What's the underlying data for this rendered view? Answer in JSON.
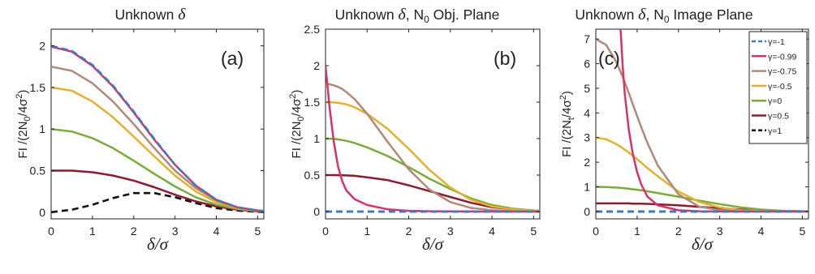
{
  "legend": {
    "entries": [
      {
        "label": "γ=-1",
        "color": "#3a7bc4",
        "dash": true
      },
      {
        "label": "γ=-0.99",
        "color": "#d6336c",
        "dash": false
      },
      {
        "label": "γ=-0.75",
        "color": "#b08a78",
        "dash": false
      },
      {
        "label": "γ=-0.5",
        "color": "#e3b030",
        "dash": false
      },
      {
        "label": "γ=0",
        "color": "#78ac3c",
        "dash": false
      },
      {
        "label": "γ=0.5",
        "color": "#8c1a30",
        "dash": false
      },
      {
        "label": "γ=1",
        "color": "#111111",
        "dash": true
      }
    ]
  },
  "chart_data": [
    {
      "type": "line",
      "title": "Unknown δ",
      "title_plain": "Unknown ",
      "title_delta": "δ",
      "title_suffix": "",
      "panel_label": "(a)",
      "xlabel": "δ/σ",
      "ylabel": "FI /(2N0/4σ2)",
      "ylabel_main": "FI /(2N",
      "ylabel_sub": "0",
      "ylabel_mid": "/4σ",
      "ylabel_sup": "2",
      "ylabel_end": ")",
      "xlim": [
        0,
        5.15
      ],
      "ylim": [
        -0.08,
        2.2
      ],
      "xticks": [
        "0",
        "1",
        "2",
        "3",
        "4",
        "5"
      ],
      "xtick_values": [
        0,
        1,
        2,
        3,
        4,
        5
      ],
      "yticks": [
        "0",
        "0.5",
        "1",
        "1.5",
        "2"
      ],
      "ytick_values": [
        0,
        0.5,
        1,
        1.5,
        2
      ],
      "x": [
        0,
        0.5,
        1,
        1.5,
        2,
        2.5,
        3,
        3.5,
        4,
        4.5,
        5,
        5.15
      ],
      "series": [
        {
          "name": "γ=-1",
          "values": [
            2.0,
            1.94,
            1.77,
            1.52,
            1.21,
            0.88,
            0.57,
            0.32,
            0.15,
            0.06,
            0.02,
            0.015
          ]
        },
        {
          "name": "γ=-0.99",
          "values": [
            1.99,
            1.93,
            1.76,
            1.51,
            1.2,
            0.87,
            0.57,
            0.32,
            0.15,
            0.06,
            0.02,
            0.015
          ]
        },
        {
          "name": "γ=-0.75",
          "values": [
            1.75,
            1.7,
            1.55,
            1.33,
            1.06,
            0.77,
            0.5,
            0.29,
            0.14,
            0.06,
            0.02,
            0.015
          ]
        },
        {
          "name": "γ=-0.5",
          "values": [
            1.5,
            1.46,
            1.33,
            1.14,
            0.91,
            0.67,
            0.44,
            0.25,
            0.12,
            0.05,
            0.02,
            0.015
          ]
        },
        {
          "name": "γ=0",
          "values": [
            1.0,
            0.97,
            0.89,
            0.77,
            0.62,
            0.46,
            0.31,
            0.18,
            0.09,
            0.04,
            0.015,
            0.012
          ]
        },
        {
          "name": "γ=0.5",
          "values": [
            0.5,
            0.5,
            0.48,
            0.44,
            0.38,
            0.3,
            0.21,
            0.13,
            0.07,
            0.03,
            0.01,
            0.008
          ]
        },
        {
          "name": "γ=1",
          "values": [
            0,
            0.03,
            0.09,
            0.17,
            0.23,
            0.23,
            0.18,
            0.11,
            0.05,
            0.02,
            0.005,
            0.004
          ]
        }
      ]
    },
    {
      "type": "line",
      "title": "Unknown δ, N0 Obj. Plane",
      "title_plain": "Unknown ",
      "title_delta": "δ",
      "title_suffix": ", N",
      "title_sub": "0",
      "title_end": "  Obj. Plane",
      "panel_label": "(b)",
      "xlabel": "δ/σ",
      "ylabel": "FI /(2N0/4σ2)",
      "ylabel_main": "FI /(2N",
      "ylabel_sub": "0",
      "ylabel_mid": "/4σ",
      "ylabel_sup": "2",
      "ylabel_end": ")",
      "xlim": [
        0,
        5.15
      ],
      "ylim": [
        -0.1,
        2.5
      ],
      "xticks": [
        "0",
        "1",
        "2",
        "3",
        "4",
        "5"
      ],
      "xtick_values": [
        0,
        1,
        2,
        3,
        4,
        5
      ],
      "yticks": [
        "0",
        "0.5",
        "1",
        "1.5",
        "2",
        "2.5"
      ],
      "ytick_values": [
        0,
        0.5,
        1,
        1.5,
        2,
        2.5
      ],
      "x": [
        0,
        0.05,
        0.1,
        0.2,
        0.3,
        0.4,
        0.5,
        0.7,
        1,
        1.5,
        2,
        2.5,
        3,
        3.5,
        4,
        4.5,
        5,
        5.15
      ],
      "series": [
        {
          "name": "γ=-1",
          "values": [
            0,
            0,
            0,
            0,
            0,
            0,
            0,
            0,
            0,
            0,
            0,
            0,
            0,
            0,
            0,
            0,
            0,
            0
          ]
        },
        {
          "name": "γ=-0.99",
          "values": [
            2.0,
            1.7,
            1.42,
            0.95,
            0.62,
            0.42,
            0.29,
            0.17,
            0.09,
            0.03,
            0.01,
            0.005,
            0.002,
            0.001,
            0,
            0,
            0,
            0
          ]
        },
        {
          "name": "γ=-0.75",
          "values": [
            1.75,
            1.749,
            1.745,
            1.73,
            1.71,
            1.68,
            1.64,
            1.54,
            1.34,
            0.95,
            0.58,
            0.3,
            0.13,
            0.05,
            0.02,
            0.005,
            0.002,
            0.001
          ]
        },
        {
          "name": "γ=-0.5",
          "values": [
            1.5,
            1.5,
            1.499,
            1.495,
            1.49,
            1.48,
            1.47,
            1.43,
            1.34,
            1.13,
            0.86,
            0.57,
            0.33,
            0.16,
            0.07,
            0.03,
            0.01,
            0.008
          ]
        },
        {
          "name": "γ=0",
          "values": [
            1.0,
            1.0,
            0.999,
            0.997,
            0.99,
            0.98,
            0.97,
            0.94,
            0.88,
            0.76,
            0.61,
            0.45,
            0.31,
            0.18,
            0.09,
            0.04,
            0.015,
            0.012
          ]
        },
        {
          "name": "γ=0.5",
          "values": [
            0.5,
            0.5,
            0.5,
            0.5,
            0.499,
            0.498,
            0.496,
            0.49,
            0.47,
            0.43,
            0.36,
            0.28,
            0.2,
            0.12,
            0.06,
            0.03,
            0.01,
            0.008
          ]
        },
        {
          "name": "γ=1",
          "values": [
            0,
            0,
            0,
            0,
            0,
            0,
            0,
            0,
            0,
            0,
            0,
            0,
            0,
            0,
            0,
            0,
            0,
            0
          ]
        }
      ]
    },
    {
      "type": "line",
      "title": "Unknown δ, N0 Image Plane",
      "title_plain": "Unknown ",
      "title_delta": "δ",
      "title_suffix": ", N",
      "title_sub": "0",
      "title_end": "  Image Plane",
      "panel_label": "(c)",
      "xlabel": "δ/σ",
      "ylabel": "FI /(2Nt/4σ2)",
      "ylabel_main": "FI /(2N",
      "ylabel_sub": "t",
      "ylabel_mid": "/4σ",
      "ylabel_sup": "2",
      "ylabel_end": ")",
      "xlim": [
        0,
        5.15
      ],
      "ylim": [
        -0.3,
        7.4
      ],
      "xticks": [
        "0",
        "1",
        "2",
        "3",
        "4",
        "5"
      ],
      "xtick_values": [
        0,
        1,
        2,
        3,
        4,
        5
      ],
      "yticks": [
        "0",
        "1",
        "2",
        "3",
        "4",
        "5",
        "6",
        "7"
      ],
      "ytick_values": [
        0,
        1,
        2,
        3,
        4,
        5,
        6,
        7
      ],
      "x": [
        0,
        0.25,
        0.5,
        0.6,
        0.65,
        0.7,
        0.8,
        0.9,
        1.0,
        1.1,
        1.25,
        1.5,
        2,
        2.5,
        3,
        3.5,
        4,
        4.5,
        5,
        5.15
      ],
      "series": [
        {
          "name": "γ=-1",
          "values": [
            0,
            0,
            0,
            0,
            0,
            0,
            0,
            0,
            0,
            0,
            0,
            0,
            0,
            0,
            0,
            0,
            0,
            0,
            0,
            0
          ]
        },
        {
          "name": "γ=-0.99",
          "values": [
            null,
            null,
            null,
            7.4,
            5.9,
            4.8,
            3.3,
            2.3,
            1.6,
            1.1,
            0.6,
            0.25,
            0.05,
            0.01,
            0,
            0,
            0,
            0,
            0,
            0
          ]
        },
        {
          "name": "γ=-0.75",
          "values": [
            7.0,
            6.76,
            6.06,
            5.67,
            5.47,
            5.25,
            4.8,
            4.33,
            3.87,
            3.42,
            2.78,
            1.87,
            0.7,
            0.2,
            0.05,
            0.01,
            0,
            0,
            0,
            0
          ]
        },
        {
          "name": "γ=-0.5",
          "values": [
            3.0,
            2.93,
            2.73,
            2.63,
            2.57,
            2.51,
            2.39,
            2.26,
            2.12,
            1.98,
            1.76,
            1.43,
            0.81,
            0.39,
            0.16,
            0.05,
            0.02,
            0.005,
            0.001,
            0.001
          ]
        },
        {
          "name": "γ=0",
          "values": [
            1.0,
            0.99,
            0.97,
            0.96,
            0.95,
            0.94,
            0.92,
            0.9,
            0.88,
            0.86,
            0.82,
            0.75,
            0.6,
            0.44,
            0.3,
            0.17,
            0.08,
            0.03,
            0.01,
            0.008
          ]
        },
        {
          "name": "γ=0.5",
          "values": [
            0.33,
            0.33,
            0.33,
            0.33,
            0.33,
            0.33,
            0.33,
            0.32,
            0.32,
            0.32,
            0.31,
            0.29,
            0.25,
            0.19,
            0.13,
            0.08,
            0.04,
            0.02,
            0.005,
            0.004
          ]
        },
        {
          "name": "γ=1",
          "values": [
            0,
            0,
            0,
            0,
            0,
            0,
            0,
            0,
            0,
            0,
            0,
            0,
            0,
            0,
            0,
            0,
            0,
            0,
            0,
            0
          ]
        }
      ]
    }
  ]
}
